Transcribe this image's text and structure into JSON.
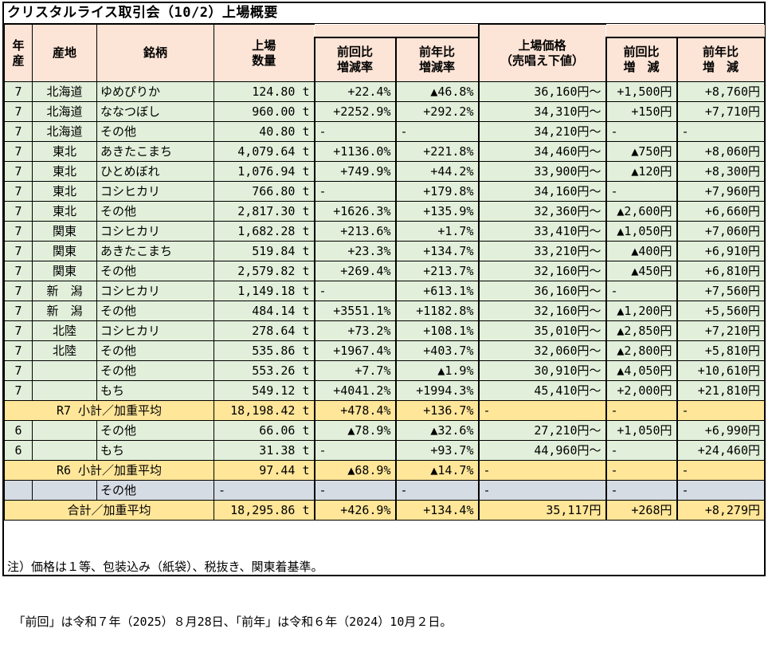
{
  "title": "クリスタルライス取引会（10/2）上場概要",
  "colors": {
    "header_bg": "#FCE4D6",
    "data_row_bg": "#E2EFDA",
    "subtotal_row_bg": "#FFE699",
    "empty_row_bg": "#D6DCE4",
    "border": "#000000"
  },
  "table": {
    "headers": {
      "year": "年\n産",
      "region": "産地",
      "brand": "銘柄",
      "quantity": "上場\n数量",
      "rate_prev": "前回比\n増減率",
      "rate_yoy": "前年比\n増減率",
      "price": "上場価格\n（売唱え下値）",
      "diff_prev": "前回比\n増　減",
      "diff_yoy": "前年比\n増　減"
    },
    "rows": [
      {
        "type": "data",
        "cells": [
          "7",
          "北海道",
          "ゆめぴりか",
          "124.80 t",
          "+22.4%",
          "▲46.8%",
          "36,160円～",
          "+1,500円",
          "+8,760円"
        ]
      },
      {
        "type": "data",
        "cells": [
          "7",
          "北海道",
          "ななつぼし",
          "960.00 t",
          "+2252.9%",
          "+292.2%",
          "34,310円～",
          "+150円",
          "+7,710円"
        ]
      },
      {
        "type": "data",
        "cells": [
          "7",
          "北海道",
          "その他",
          "40.80 t",
          "-",
          "-",
          "34,210円～",
          "-",
          "-"
        ]
      },
      {
        "type": "data",
        "cells": [
          "7",
          "東北",
          "あきたこまち",
          "4,079.64 t",
          "+1136.0%",
          "+221.8%",
          "34,460円～",
          "▲750円",
          "+8,060円"
        ]
      },
      {
        "type": "data",
        "cells": [
          "7",
          "東北",
          "ひとめぼれ",
          "1,076.94 t",
          "+749.9%",
          "+44.2%",
          "33,900円～",
          "▲120円",
          "+8,300円"
        ]
      },
      {
        "type": "data",
        "cells": [
          "7",
          "東北",
          "コシヒカリ",
          "766.80 t",
          "-",
          "+179.8%",
          "34,160円～",
          "-",
          "+7,960円"
        ]
      },
      {
        "type": "data",
        "cells": [
          "7",
          "東北",
          "その他",
          "2,817.30 t",
          "+1626.3%",
          "+135.9%",
          "32,360円～",
          "▲2,600円",
          "+6,660円"
        ]
      },
      {
        "type": "data",
        "cells": [
          "7",
          "関東",
          "コシヒカリ",
          "1,682.28 t",
          "+213.6%",
          "+1.7%",
          "33,410円～",
          "▲1,050円",
          "+7,060円"
        ]
      },
      {
        "type": "data",
        "cells": [
          "7",
          "関東",
          "あきたこまち",
          "519.84 t",
          "+23.3%",
          "+134.7%",
          "33,210円～",
          "▲400円",
          "+6,910円"
        ]
      },
      {
        "type": "data",
        "cells": [
          "7",
          "関東",
          "その他",
          "2,579.82 t",
          "+269.4%",
          "+213.7%",
          "32,160円～",
          "▲450円",
          "+6,810円"
        ]
      },
      {
        "type": "data",
        "cells": [
          "7",
          "新　潟",
          "コシヒカリ",
          "1,149.18 t",
          "-",
          "+613.1%",
          "36,160円～",
          "-",
          "+7,560円"
        ]
      },
      {
        "type": "data",
        "cells": [
          "7",
          "新　潟",
          "その他",
          "484.14 t",
          "+3551.1%",
          "+1182.8%",
          "32,160円～",
          "▲1,200円",
          "+5,560円"
        ]
      },
      {
        "type": "data",
        "cells": [
          "7",
          "北陸",
          "コシヒカリ",
          "278.64 t",
          "+73.2%",
          "+108.1%",
          "35,010円～",
          "▲2,850円",
          "+7,210円"
        ]
      },
      {
        "type": "data",
        "cells": [
          "7",
          "北陸",
          "その他",
          "535.86 t",
          "+1967.4%",
          "+403.7%",
          "32,060円～",
          "▲2,800円",
          "+5,810円"
        ]
      },
      {
        "type": "data",
        "cells": [
          "7",
          "",
          "その他",
          "553.26 t",
          "+7.7%",
          "▲1.9%",
          "30,910円～",
          "▲4,050円",
          "+10,610円"
        ]
      },
      {
        "type": "data",
        "cells": [
          "7",
          "",
          "もち",
          "549.12 t",
          "+4041.2%",
          "+1994.3%",
          "45,410円～",
          "+2,000円",
          "+21,810円"
        ]
      },
      {
        "type": "subtotal",
        "label": "R7 小計／加重平均",
        "cells": [
          "18,198.42 t",
          "+478.4%",
          "+136.7%",
          "-",
          "-",
          "-"
        ]
      },
      {
        "type": "data",
        "cells": [
          "6",
          "",
          "その他",
          "66.06 t",
          "▲78.9%",
          "▲32.6%",
          "27,210円～",
          "+1,050円",
          "+6,990円"
        ]
      },
      {
        "type": "data",
        "cells": [
          "6",
          "",
          "もち",
          "31.38 t",
          "-",
          "+93.7%",
          "44,960円～",
          "-",
          "+24,460円"
        ]
      },
      {
        "type": "subtotal",
        "label": "R6 小計／加重平均",
        "cells": [
          "97.44 t",
          "▲68.9%",
          "▲14.7%",
          "-",
          "-",
          "-"
        ]
      },
      {
        "type": "empty",
        "cells": [
          "",
          "",
          "その他",
          "-",
          "-",
          "-",
          "-",
          "-",
          "-"
        ]
      },
      {
        "type": "total",
        "label": "合計／加重平均",
        "cells": [
          "18,295.86 t",
          "+426.9%",
          "+134.4%",
          "35,117円",
          "+268円",
          "+8,279円"
        ]
      }
    ]
  },
  "notes": [
    "注）価格は１等、包装込み（紙袋）、税抜き、関東着基準。",
    "　「前回」は令和７年（2025）８月28日、「前年」は令和６年（2024）10月２日。"
  ]
}
